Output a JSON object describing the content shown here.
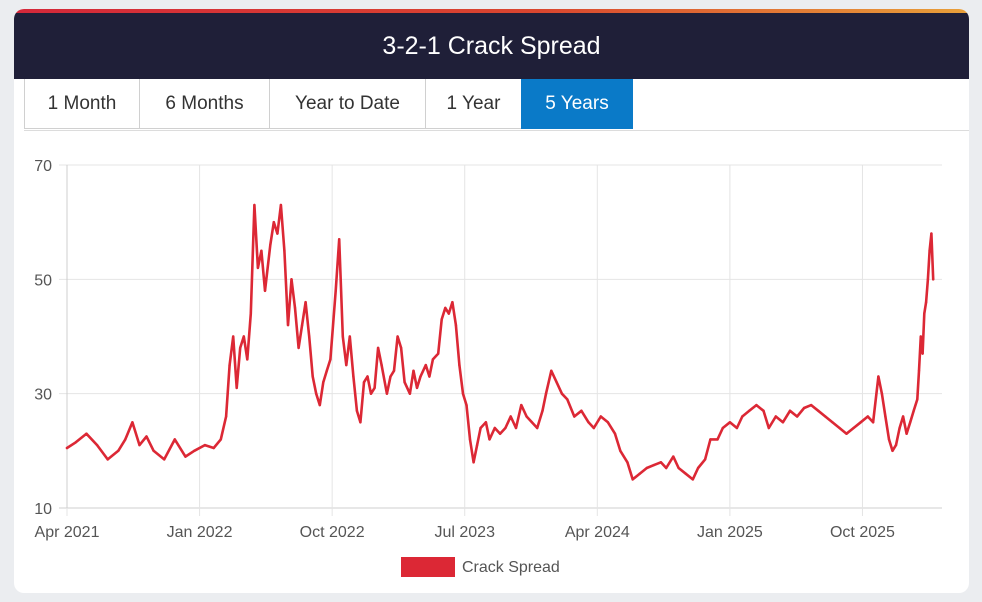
{
  "title": "3-2-1 Crack Spread",
  "tabs": [
    {
      "label": "1 Month",
      "active": false
    },
    {
      "label": "6 Months",
      "active": false
    },
    {
      "label": "Year to Date",
      "active": false
    },
    {
      "label": "1 Year",
      "active": false
    },
    {
      "label": "5 Years",
      "active": true
    }
  ],
  "colors": {
    "series": "#dc2835",
    "active_tab": "#0a7ac8",
    "header": "#1f1f38"
  },
  "chart_data": {
    "type": "line",
    "title": "3-2-1 Crack Spread",
    "xlabel": "",
    "ylabel": "",
    "ylim": [
      10,
      70
    ],
    "y_ticks": [
      10,
      30,
      50,
      70
    ],
    "x_tick_labels": [
      "Apr 2021",
      "Jan 2022",
      "Oct 2022",
      "Jul 2023",
      "Apr 2024",
      "Jan 2025",
      "Oct 2025"
    ],
    "x_tick_t": [
      2021.25,
      2022.0,
      2022.75,
      2023.5,
      2024.25,
      2025.0,
      2025.75
    ],
    "xlim": [
      2021.25,
      2026.2
    ],
    "grid": true,
    "legend": {
      "position": "bottom-center",
      "entries": [
        "Crack Spread"
      ]
    },
    "series": [
      {
        "name": "Crack Spread",
        "points": [
          [
            2021.25,
            20.5
          ],
          [
            2021.3,
            21.5
          ],
          [
            2021.36,
            23
          ],
          [
            2021.42,
            21
          ],
          [
            2021.48,
            18.5
          ],
          [
            2021.54,
            20
          ],
          [
            2021.58,
            22
          ],
          [
            2021.62,
            25
          ],
          [
            2021.66,
            21
          ],
          [
            2021.7,
            22.5
          ],
          [
            2021.74,
            20
          ],
          [
            2021.8,
            18.5
          ],
          [
            2021.86,
            22
          ],
          [
            2021.92,
            19
          ],
          [
            2021.97,
            20
          ],
          [
            2022.03,
            21
          ],
          [
            2022.08,
            20.5
          ],
          [
            2022.12,
            22
          ],
          [
            2022.15,
            26
          ],
          [
            2022.17,
            35
          ],
          [
            2022.19,
            40
          ],
          [
            2022.21,
            31
          ],
          [
            2022.23,
            38
          ],
          [
            2022.25,
            40
          ],
          [
            2022.27,
            36
          ],
          [
            2022.29,
            44
          ],
          [
            2022.31,
            63
          ],
          [
            2022.33,
            52
          ],
          [
            2022.35,
            55
          ],
          [
            2022.37,
            48
          ],
          [
            2022.4,
            56
          ],
          [
            2022.42,
            60
          ],
          [
            2022.44,
            58
          ],
          [
            2022.46,
            63
          ],
          [
            2022.48,
            55
          ],
          [
            2022.5,
            42
          ],
          [
            2022.52,
            50
          ],
          [
            2022.54,
            45
          ],
          [
            2022.56,
            38
          ],
          [
            2022.58,
            42
          ],
          [
            2022.6,
            46
          ],
          [
            2022.62,
            40
          ],
          [
            2022.64,
            33
          ],
          [
            2022.66,
            30
          ],
          [
            2022.68,
            28
          ],
          [
            2022.7,
            32
          ],
          [
            2022.72,
            34
          ],
          [
            2022.74,
            36
          ],
          [
            2022.77,
            48
          ],
          [
            2022.79,
            57
          ],
          [
            2022.81,
            40
          ],
          [
            2022.83,
            35
          ],
          [
            2022.85,
            40
          ],
          [
            2022.87,
            33
          ],
          [
            2022.89,
            27
          ],
          [
            2022.91,
            25
          ],
          [
            2022.93,
            32
          ],
          [
            2022.95,
            33
          ],
          [
            2022.97,
            30
          ],
          [
            2022.99,
            31
          ],
          [
            2023.01,
            38
          ],
          [
            2023.03,
            35
          ],
          [
            2023.06,
            30
          ],
          [
            2023.08,
            33
          ],
          [
            2023.1,
            34
          ],
          [
            2023.12,
            40
          ],
          [
            2023.14,
            38
          ],
          [
            2023.16,
            32
          ],
          [
            2023.19,
            30
          ],
          [
            2023.21,
            34
          ],
          [
            2023.23,
            31
          ],
          [
            2023.25,
            33
          ],
          [
            2023.28,
            35
          ],
          [
            2023.3,
            33
          ],
          [
            2023.32,
            36
          ],
          [
            2023.35,
            37
          ],
          [
            2023.37,
            43
          ],
          [
            2023.39,
            45
          ],
          [
            2023.41,
            44
          ],
          [
            2023.43,
            46
          ],
          [
            2023.45,
            42
          ],
          [
            2023.47,
            35
          ],
          [
            2023.49,
            30
          ],
          [
            2023.51,
            28
          ],
          [
            2023.53,
            22
          ],
          [
            2023.55,
            18
          ],
          [
            2023.57,
            21
          ],
          [
            2023.59,
            24
          ],
          [
            2023.62,
            25
          ],
          [
            2023.64,
            22
          ],
          [
            2023.67,
            24
          ],
          [
            2023.7,
            23
          ],
          [
            2023.73,
            24
          ],
          [
            2023.76,
            26
          ],
          [
            2023.79,
            24
          ],
          [
            2023.82,
            28
          ],
          [
            2023.85,
            26
          ],
          [
            2023.88,
            25
          ],
          [
            2023.91,
            24
          ],
          [
            2023.94,
            27
          ],
          [
            2023.96,
            30
          ],
          [
            2023.99,
            34
          ],
          [
            2024.02,
            32
          ],
          [
            2024.05,
            30
          ],
          [
            2024.08,
            29
          ],
          [
            2024.12,
            26
          ],
          [
            2024.16,
            27
          ],
          [
            2024.2,
            25
          ],
          [
            2024.23,
            24
          ],
          [
            2024.27,
            26
          ],
          [
            2024.31,
            25
          ],
          [
            2024.35,
            23
          ],
          [
            2024.38,
            20
          ],
          [
            2024.42,
            18
          ],
          [
            2024.45,
            15
          ],
          [
            2024.49,
            16
          ],
          [
            2024.53,
            17
          ],
          [
            2024.57,
            17.5
          ],
          [
            2024.61,
            18
          ],
          [
            2024.64,
            17
          ],
          [
            2024.68,
            19
          ],
          [
            2024.71,
            17
          ],
          [
            2024.75,
            16
          ],
          [
            2024.79,
            15
          ],
          [
            2024.82,
            17
          ],
          [
            2024.86,
            18.5
          ],
          [
            2024.89,
            22
          ],
          [
            2024.93,
            22
          ],
          [
            2024.96,
            24
          ],
          [
            2025.0,
            25
          ],
          [
            2025.04,
            24
          ],
          [
            2025.07,
            26
          ],
          [
            2025.11,
            27
          ],
          [
            2025.15,
            28
          ],
          [
            2025.19,
            27
          ],
          [
            2025.22,
            24
          ],
          [
            2025.26,
            26
          ],
          [
            2025.3,
            25
          ],
          [
            2025.34,
            27
          ],
          [
            2025.38,
            26
          ],
          [
            2025.42,
            27.5
          ],
          [
            2025.46,
            28
          ],
          [
            2025.5,
            27
          ],
          [
            2025.54,
            26
          ],
          [
            2025.58,
            25
          ],
          [
            2025.62,
            24
          ],
          [
            2025.66,
            23
          ],
          [
            2025.7,
            24
          ],
          [
            2025.74,
            25
          ],
          [
            2025.78,
            26
          ],
          [
            2025.81,
            25
          ],
          [
            2025.84,
            33
          ],
          [
            2025.86,
            30
          ],
          [
            2025.88,
            26
          ],
          [
            2025.9,
            22
          ],
          [
            2025.92,
            20
          ],
          [
            2025.94,
            21
          ],
          [
            2025.96,
            24
          ],
          [
            2025.98,
            26
          ],
          [
            2026.0,
            23
          ],
          [
            2026.02,
            25
          ],
          [
            2026.04,
            27
          ],
          [
            2026.06,
            29
          ],
          [
            2026.07,
            34
          ],
          [
            2026.08,
            40
          ],
          [
            2026.09,
            37
          ],
          [
            2026.1,
            44
          ],
          [
            2026.11,
            46
          ],
          [
            2026.12,
            50
          ],
          [
            2026.13,
            55
          ],
          [
            2026.14,
            58
          ],
          [
            2026.15,
            50
          ]
        ]
      }
    ]
  }
}
